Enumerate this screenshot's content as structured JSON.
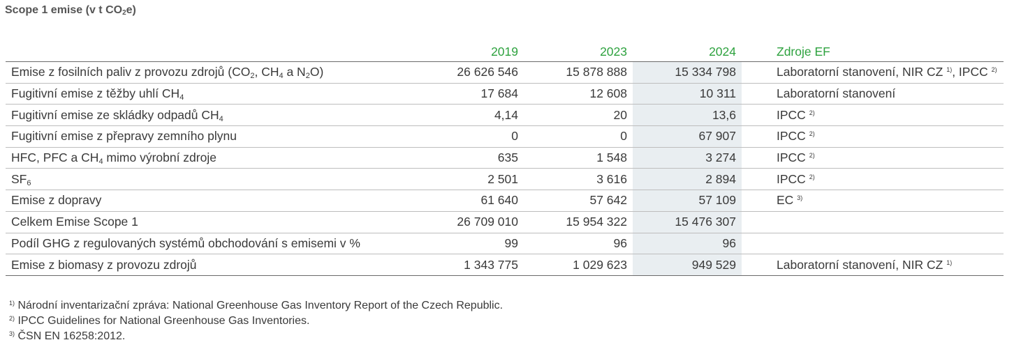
{
  "title": {
    "main": "Scope 1 emise (v t CO",
    "sub": "2",
    "end": "e)"
  },
  "columns": {
    "y2019": "2019",
    "y2023": "2023",
    "y2024": "2024",
    "source": "Zdroje EF"
  },
  "rows": [
    {
      "label": "Emise z fosilních paliv z provozu zdrojů (CO",
      "v2019": "26 626 546",
      "v2023": "15 878 888",
      "v2024": "15 334 798",
      "source": "Laboratorní stanovení, NIR CZ"
    },
    {
      "label": "Fugitivní emise z těžby uhlí CH",
      "v2019": "17 684",
      "v2023": "12 608",
      "v2024": "10 311",
      "source": "Laboratorní stanovení"
    },
    {
      "label": "Fugitivní emise ze skládky odpadů CH",
      "v2019": "4,14",
      "v2023": "20",
      "v2024": "13,6",
      "source": "IPCC"
    },
    {
      "label": "Fugitivní emise z přepravy zemního plynu",
      "v2019": "0",
      "v2023": "0",
      "v2024": "67 907",
      "source": "IPCC"
    },
    {
      "label": "HFC, PFC a CH",
      "v2019": "635",
      "v2023": "1 548",
      "v2024": "3 274",
      "source": "IPCC"
    },
    {
      "label": "SF",
      "v2019": "2 501",
      "v2023": "3 616",
      "v2024": "2 894",
      "source": "IPCC"
    },
    {
      "label": "Emise z dopravy",
      "v2019": "61 640",
      "v2023": "57 642",
      "v2024": "57 109",
      "source": "EC"
    },
    {
      "label": "Celkem Emise Scope 1",
      "v2019": "26 709 010",
      "v2023": "15 954 322",
      "v2024": "15 476 307",
      "source": ""
    },
    {
      "label": "Podíl GHG z regulovaných systémů obchodování s emisemi v %",
      "v2019": "99",
      "v2023": "96",
      "v2024": "96",
      "source": ""
    },
    {
      "label": "Emise z biomasy z provozu zdrojů",
      "v2019": "1 343 775",
      "v2023": "1 029 623",
      "v2024": "949 529",
      "source": "Laboratorní stanovení, NIR CZ"
    }
  ],
  "row0_parts": {
    "mid1": ", CH",
    "mid2": " a N",
    "end": "O)",
    "src_sep": ", IPCC"
  },
  "row4_end": " mimo výrobní zdroje",
  "subs": {
    "two": "2",
    "four": "4",
    "six": "6"
  },
  "sups": {
    "one": "1)",
    "two": "2)",
    "three": "3)"
  },
  "notes": [
    {
      "num": "1)",
      "text": " Národní inventarizační zpráva: National Greenhouse Gas Inventory Report of the Czech Republic."
    },
    {
      "num": "2)",
      "text": " IPCC Guidelines for National Greenhouse Gas Inventories."
    },
    {
      "num": "3)",
      "text": " ČSN EN 16258:2012."
    }
  ],
  "colors": {
    "header_green": "#2ea23f",
    "highlight_column": "#e9eef1",
    "text": "#3a3a3a"
  }
}
